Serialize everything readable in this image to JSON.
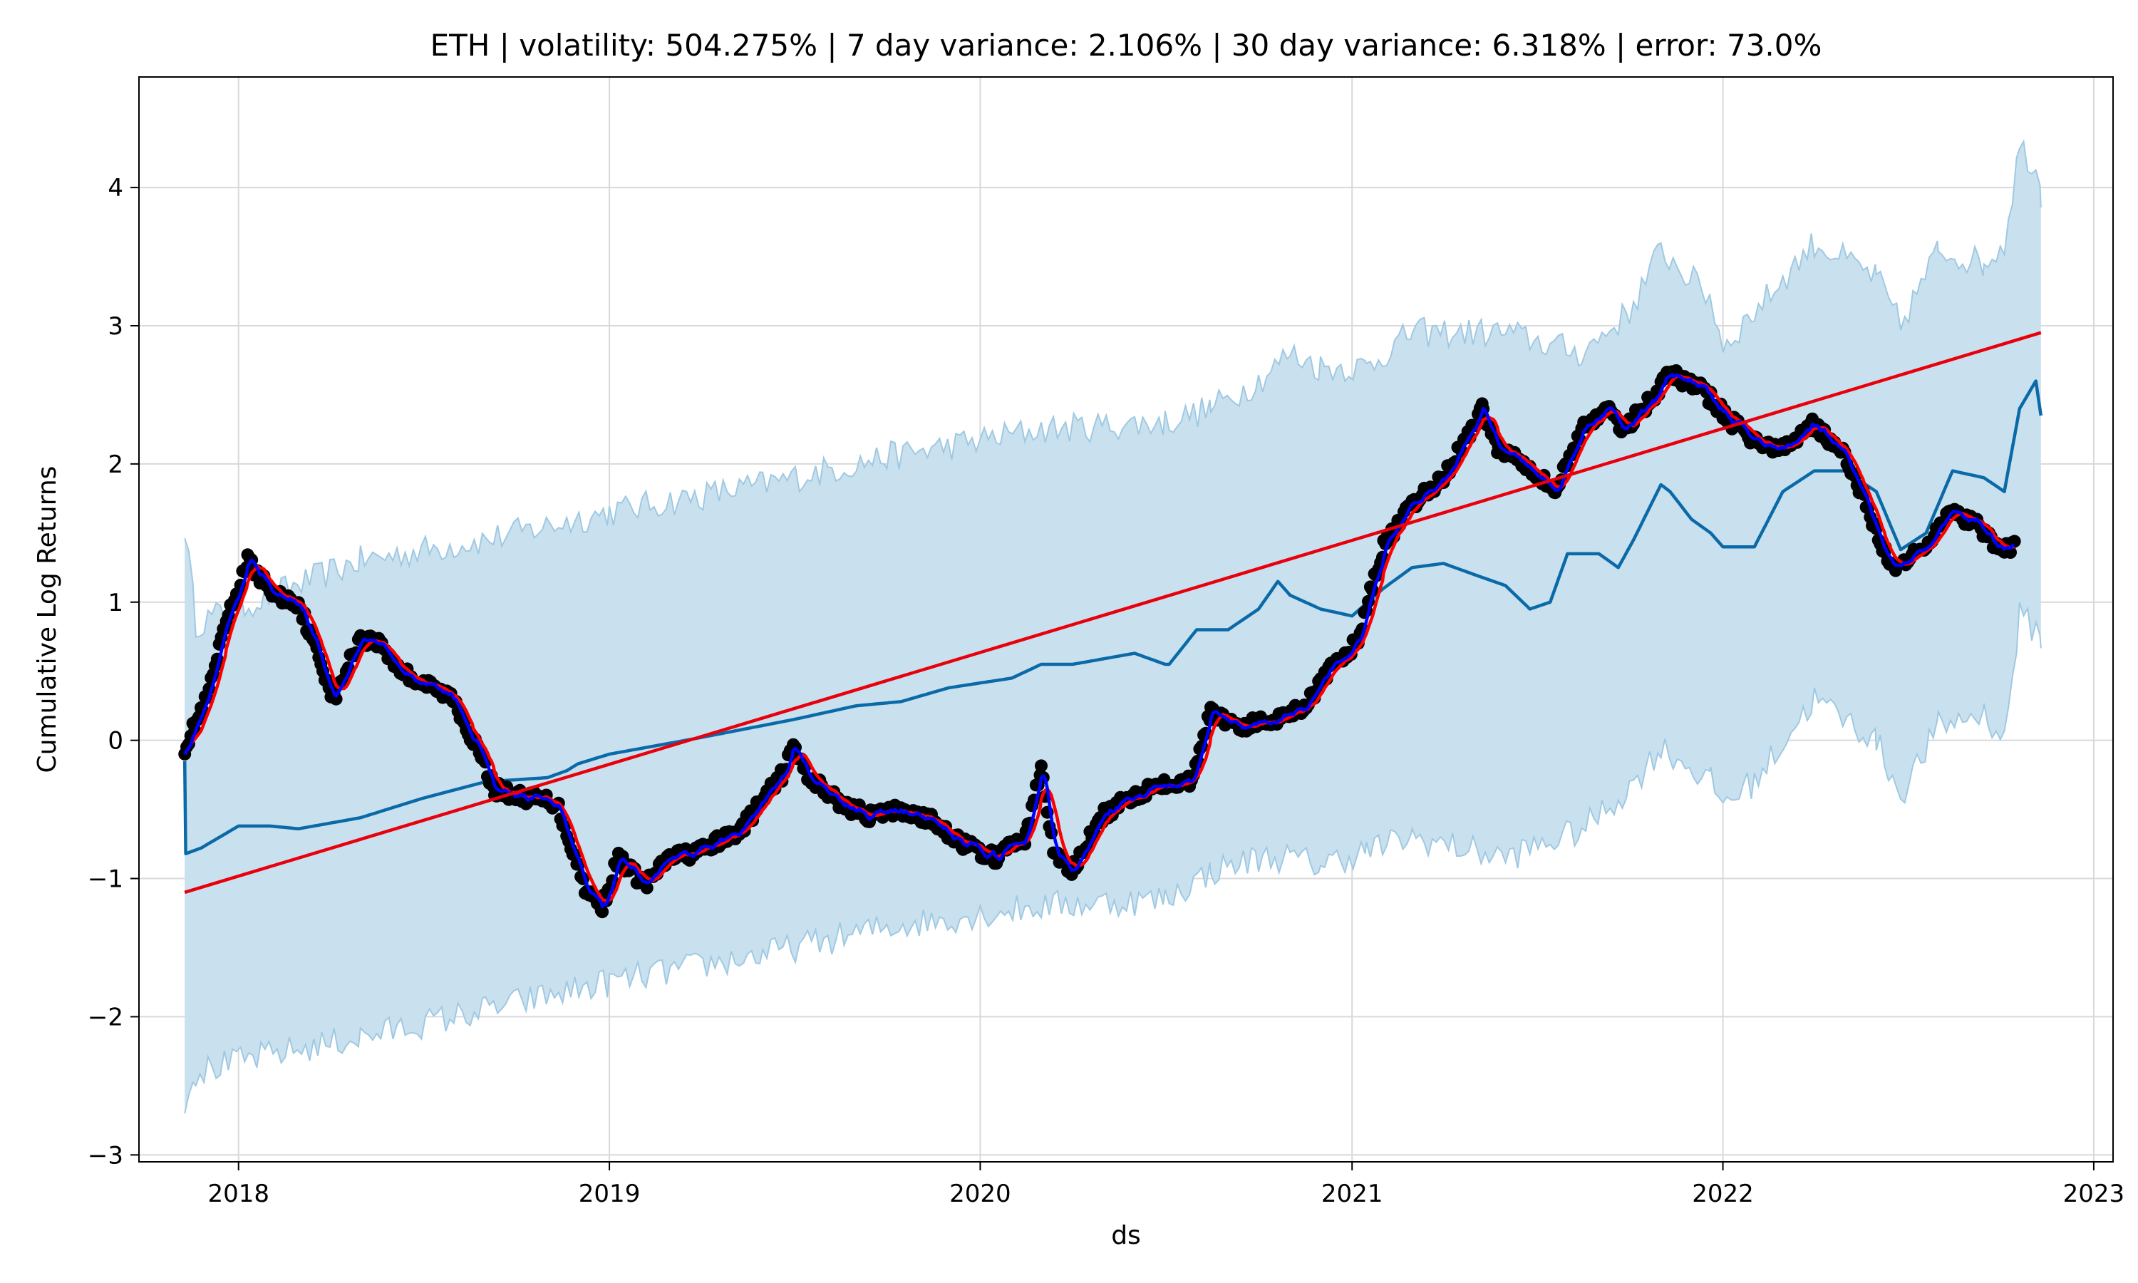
{
  "chart_data": {
    "type": "line",
    "title": "ETH | volatility: 504.275% | 7 day variance: 2.106% | 30 day variance: 6.318% | error: 73.0%",
    "xlabel": "ds",
    "ylabel": "Cumulative Log Returns",
    "xlim": [
      "2017-09-25",
      "2023-01-20"
    ],
    "ylim": [
      -3.05,
      4.8
    ],
    "x_ticks": [
      "2018",
      "2019",
      "2020",
      "2021",
      "2022",
      "2023"
    ],
    "y_ticks": [
      "-3",
      "-2",
      "-1",
      "0",
      "1",
      "2",
      "3",
      "4"
    ],
    "grid": true,
    "legend": "none",
    "colors": {
      "band": "#c9e0ef",
      "band_edge": "#9fc9e2",
      "forecast": "#0a6aa8",
      "observed": "#000000",
      "smoothed_7d": "#0000ff",
      "smoothed_30d": "#ff0000",
      "trend": "#e8000b"
    },
    "series": [
      {
        "kind": "uncertainty_upper",
        "x": [
          "2017-11-09",
          "2017-11-20",
          "2018-01-15",
          "2018-05-01",
          "2018-09-01",
          "2019-01-01",
          "2019-06-01",
          "2019-10-01",
          "2020-03-01",
          "2020-07-01",
          "2020-08-15",
          "2020-10-01",
          "2020-11-01",
          "2020-12-01",
          "2021-01-15",
          "2021-03-01",
          "2021-06-01",
          "2021-08-15",
          "2021-10-01",
          "2021-11-01",
          "2021-12-20",
          "2022-01-01",
          "2022-02-01",
          "2022-04-01",
          "2022-06-01",
          "2022-06-25",
          "2022-08-01",
          "2022-09-15",
          "2022-10-05",
          "2022-10-20",
          "2022-11-05",
          "2022-11-10"
        ],
        "values": [
          1.55,
          0.85,
          1.0,
          1.3,
          1.45,
          1.65,
          1.85,
          2.05,
          2.25,
          2.3,
          2.4,
          2.6,
          2.8,
          2.7,
          2.7,
          2.95,
          2.95,
          2.8,
          3.1,
          3.55,
          3.2,
          2.85,
          3.1,
          3.6,
          3.35,
          3.0,
          3.55,
          3.45,
          3.6,
          4.3,
          4.15,
          3.95
        ]
      },
      {
        "kind": "uncertainty_lower",
        "x": [
          "2017-11-09",
          "2017-11-20",
          "2018-01-15",
          "2018-05-01",
          "2018-09-01",
          "2019-01-01",
          "2019-06-01",
          "2019-10-01",
          "2020-03-01",
          "2020-07-01",
          "2020-08-15",
          "2020-10-01",
          "2020-11-01",
          "2020-12-01",
          "2021-01-15",
          "2021-03-01",
          "2021-06-01",
          "2021-08-15",
          "2021-10-01",
          "2021-11-01",
          "2021-12-20",
          "2022-01-01",
          "2022-02-01",
          "2022-04-01",
          "2022-06-01",
          "2022-06-25",
          "2022-08-01",
          "2022-09-15",
          "2022-10-05",
          "2022-10-20",
          "2022-11-05",
          "2022-11-10"
        ],
        "values": [
          -2.6,
          -2.4,
          -2.3,
          -2.15,
          -1.95,
          -1.75,
          -1.55,
          -1.35,
          -1.2,
          -1.15,
          -0.95,
          -0.85,
          -0.85,
          -0.9,
          -0.8,
          -0.7,
          -0.85,
          -0.65,
          -0.35,
          -0.05,
          -0.3,
          -0.45,
          -0.3,
          0.3,
          0.0,
          -0.4,
          0.1,
          0.2,
          0.0,
          0.9,
          0.8,
          0.75
        ]
      },
      {
        "kind": "forecast",
        "x": [
          "2017-11-09",
          "2017-11-10",
          "2017-11-25",
          "2018-01-01",
          "2018-02-01",
          "2018-03-01",
          "2018-05-01",
          "2018-07-01",
          "2018-09-01",
          "2018-11-01",
          "2018-11-20",
          "2018-12-01",
          "2019-01-01",
          "2019-04-01",
          "2019-07-01",
          "2019-09-01",
          "2019-10-15",
          "2019-12-01",
          "2020-02-01",
          "2020-03-01",
          "2020-04-01",
          "2020-06-01",
          "2020-07-01",
          "2020-07-05",
          "2020-08-01",
          "2020-09-01",
          "2020-10-01",
          "2020-10-20",
          "2020-11-01",
          "2020-12-01",
          "2021-01-01",
          "2021-02-01",
          "2021-03-01",
          "2021-04-01",
          "2021-05-01",
          "2021-06-01",
          "2021-06-25",
          "2021-07-15",
          "2021-08-01",
          "2021-09-01",
          "2021-09-20",
          "2021-10-05",
          "2021-11-01",
          "2021-11-10",
          "2021-12-01",
          "2021-12-20",
          "2022-01-01",
          "2022-02-01",
          "2022-03-01",
          "2022-04-01",
          "2022-05-01",
          "2022-06-01",
          "2022-06-25",
          "2022-07-20",
          "2022-08-15",
          "2022-09-15",
          "2022-10-05",
          "2022-10-20",
          "2022-11-05",
          "2022-11-10"
        ],
        "values": [
          -0.15,
          -0.82,
          -0.78,
          -0.62,
          -0.62,
          -0.64,
          -0.56,
          -0.42,
          -0.3,
          -0.27,
          -0.22,
          -0.17,
          -0.1,
          0.02,
          0.15,
          0.25,
          0.28,
          0.38,
          0.45,
          0.55,
          0.55,
          0.63,
          0.55,
          0.55,
          0.8,
          0.8,
          0.95,
          1.15,
          1.05,
          0.95,
          0.9,
          1.1,
          1.25,
          1.28,
          1.2,
          1.12,
          0.95,
          1.0,
          1.35,
          1.35,
          1.25,
          1.45,
          1.85,
          1.8,
          1.6,
          1.5,
          1.4,
          1.4,
          1.8,
          1.95,
          1.95,
          1.8,
          1.38,
          1.5,
          1.95,
          1.9,
          1.8,
          2.4,
          2.6,
          2.35
        ]
      },
      {
        "kind": "observed",
        "x": [
          "2017-11-09",
          "2017-12-01",
          "2017-12-20",
          "2018-01-10",
          "2018-02-05",
          "2018-03-01",
          "2018-04-05",
          "2018-05-01",
          "2018-05-20",
          "2018-06-10",
          "2018-07-05",
          "2018-08-01",
          "2018-08-20",
          "2018-09-10",
          "2018-10-01",
          "2018-11-10",
          "2018-12-10",
          "2018-12-25",
          "2019-01-10",
          "2019-02-05",
          "2019-03-01",
          "2019-04-01",
          "2019-05-10",
          "2019-06-20",
          "2019-07-01",
          "2019-07-15",
          "2019-08-15",
          "2019-09-15",
          "2019-10-15",
          "2019-11-20",
          "2019-12-15",
          "2020-01-15",
          "2020-02-15",
          "2020-03-01",
          "2020-03-13",
          "2020-03-31",
          "2020-04-30",
          "2020-05-31",
          "2020-06-30",
          "2020-07-25",
          "2020-08-15",
          "2020-09-15",
          "2020-10-15",
          "2020-11-15",
          "2020-12-15",
          "2021-01-05",
          "2021-02-01",
          "2021-03-01",
          "2021-04-01",
          "2021-05-10",
          "2021-05-25",
          "2021-06-15",
          "2021-07-20",
          "2021-08-15",
          "2021-09-07",
          "2021-09-25",
          "2021-10-20",
          "2021-11-10",
          "2021-12-10",
          "2022-01-10",
          "2022-02-05",
          "2022-03-01",
          "2022-03-30",
          "2022-05-01",
          "2022-05-20",
          "2022-06-10",
          "2022-06-18",
          "2022-07-10",
          "2022-08-15",
          "2022-09-10",
          "2022-09-25",
          "2022-10-15"
        ],
        "values": [
          -0.05,
          0.3,
          0.85,
          1.3,
          1.05,
          1.0,
          0.3,
          0.75,
          0.7,
          0.5,
          0.4,
          0.3,
          0.0,
          -0.35,
          -0.4,
          -0.45,
          -1.1,
          -1.2,
          -0.85,
          -1.05,
          -0.85,
          -0.8,
          -0.65,
          -0.25,
          -0.05,
          -0.25,
          -0.45,
          -0.55,
          -0.5,
          -0.6,
          -0.75,
          -0.85,
          -0.7,
          -0.2,
          -0.8,
          -0.95,
          -0.55,
          -0.4,
          -0.3,
          -0.3,
          0.2,
          0.1,
          0.15,
          0.25,
          0.55,
          0.7,
          1.4,
          1.7,
          1.9,
          2.4,
          2.1,
          2.05,
          1.8,
          2.25,
          2.4,
          2.25,
          2.45,
          2.65,
          2.55,
          2.3,
          2.15,
          2.1,
          2.3,
          2.05,
          1.75,
          1.35,
          1.25,
          1.35,
          1.65,
          1.55,
          1.4,
          1.4
        ]
      },
      {
        "kind": "trend",
        "x": [
          "2017-11-09",
          "2022-11-10"
        ],
        "values": [
          -1.1,
          2.95
        ]
      }
    ]
  }
}
